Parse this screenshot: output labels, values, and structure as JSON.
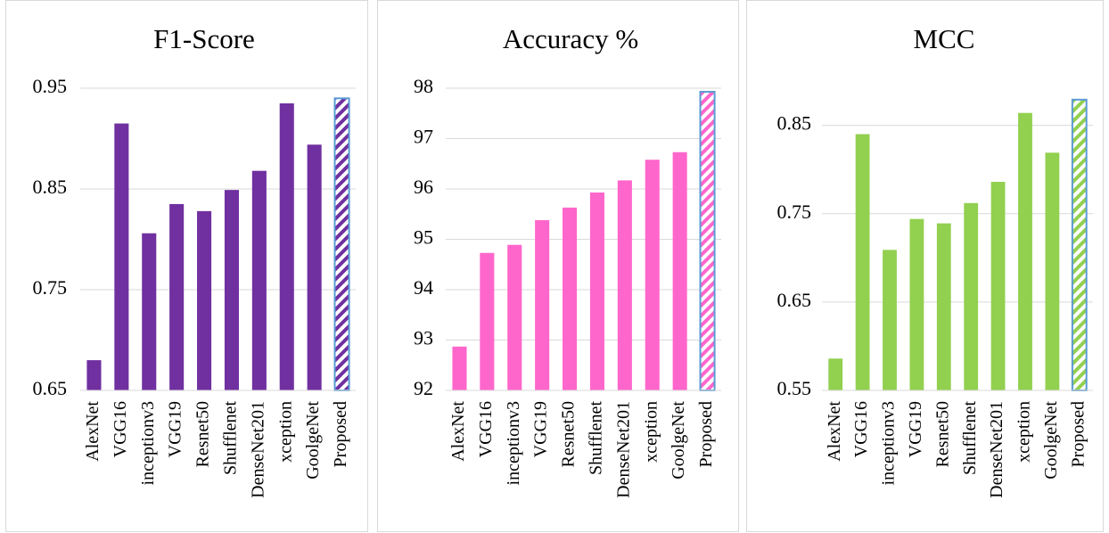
{
  "chart_data": [
    {
      "type": "bar",
      "title": "F1-Score",
      "categories": [
        "AlexNet",
        "VGG16",
        "inceptionv3",
        "VGG19",
        "Resnet50",
        "Shufflenet",
        "DenseNet201",
        "xception",
        "GoolgeNet",
        "Proposed"
      ],
      "values": [
        0.68,
        0.915,
        0.806,
        0.835,
        0.828,
        0.849,
        0.868,
        0.935,
        0.894,
        0.94
      ],
      "ylim": [
        0.65,
        0.95
      ],
      "yticks": [
        "0.65",
        "0.75",
        "0.85",
        "0.95"
      ],
      "color": "#7030A0",
      "highlight": "Proposed",
      "highlight_style": "hatched",
      "grid": true
    },
    {
      "type": "bar",
      "title": "Accuracy %",
      "categories": [
        "AlexNet",
        "VGG16",
        "inceptionv3",
        "VGG19",
        "Resnet50",
        "Shufflenet",
        "DenseNet201",
        "xception",
        "GoolgeNet",
        "Proposed"
      ],
      "values": [
        92.87,
        94.73,
        94.89,
        95.38,
        95.63,
        95.93,
        96.17,
        96.58,
        96.73,
        97.93
      ],
      "ylim": [
        92,
        98
      ],
      "yticks": [
        "92",
        "93",
        "94",
        "95",
        "96",
        "97",
        "98"
      ],
      "color": "#FF66CC",
      "highlight": "Proposed",
      "highlight_style": "hatched",
      "grid": true
    },
    {
      "type": "bar",
      "title": "MCC",
      "categories": [
        "AlexNet",
        "VGG16",
        "inceptionv3",
        "VGG19",
        "Resnet50",
        "Shufflenet",
        "DenseNet201",
        "xception",
        "GoolgeNet",
        "Proposed"
      ],
      "values": [
        0.586,
        0.84,
        0.709,
        0.744,
        0.739,
        0.762,
        0.786,
        0.864,
        0.819,
        0.879
      ],
      "ylim": [
        0.55,
        0.9
      ],
      "yticks": [
        "0.55",
        "0.65",
        "0.75",
        "0.85"
      ],
      "color": "#92D050",
      "highlight": "Proposed",
      "highlight_style": "hatched",
      "grid": true
    }
  ]
}
